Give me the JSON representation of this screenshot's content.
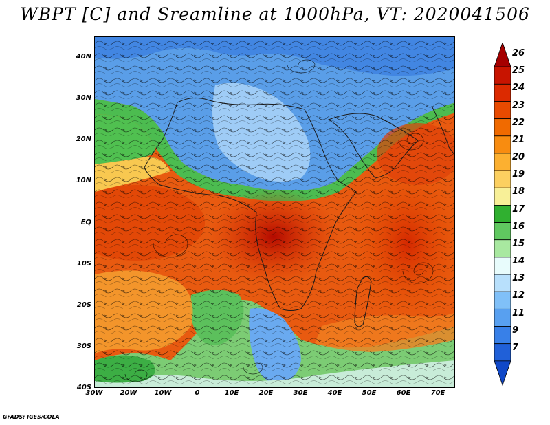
{
  "title": "WBPT [C] and Sreamline at 1000hPa, VT: 2020041506",
  "credit": "GrADS: IGES/COLA",
  "map": {
    "lon_range": [
      -30,
      75
    ],
    "lat_range": [
      -40,
      45
    ],
    "lat_ticks": [
      {
        "value": 40,
        "label": "40N"
      },
      {
        "value": 30,
        "label": "30N"
      },
      {
        "value": 20,
        "label": "20N"
      },
      {
        "value": 10,
        "label": "10N"
      },
      {
        "value": 0,
        "label": "EQ"
      },
      {
        "value": -10,
        "label": "10S"
      },
      {
        "value": -20,
        "label": "20S"
      },
      {
        "value": -30,
        "label": "30S"
      },
      {
        "value": -40,
        "label": "40S"
      }
    ],
    "lon_ticks": [
      {
        "value": -30,
        "label": "30W"
      },
      {
        "value": -20,
        "label": "20W"
      },
      {
        "value": -10,
        "label": "10W"
      },
      {
        "value": 0,
        "label": "0"
      },
      {
        "value": 10,
        "label": "10E"
      },
      {
        "value": 20,
        "label": "20E"
      },
      {
        "value": 30,
        "label": "30E"
      },
      {
        "value": 40,
        "label": "40E"
      },
      {
        "value": 50,
        "label": "50E"
      },
      {
        "value": 60,
        "label": "60E"
      },
      {
        "value": 70,
        "label": "70E"
      }
    ]
  },
  "colorbar": {
    "levels": [
      "26",
      "25",
      "24",
      "23",
      "22",
      "21",
      "20",
      "19",
      "18",
      "17",
      "16",
      "15",
      "14",
      "13",
      "12",
      "11",
      "9",
      "7"
    ],
    "colors": [
      "#a50000",
      "#c81400",
      "#dc2a00",
      "#e84a00",
      "#f06a00",
      "#f88c10",
      "#fcb030",
      "#fcd060",
      "#f8f098",
      "#30b030",
      "#60c860",
      "#a8e8a0",
      "#e8fcfc",
      "#b8e0fc",
      "#80c0f8",
      "#58a0f0",
      "#3880e8",
      "#2060d8",
      "#1048c8"
    ]
  }
}
